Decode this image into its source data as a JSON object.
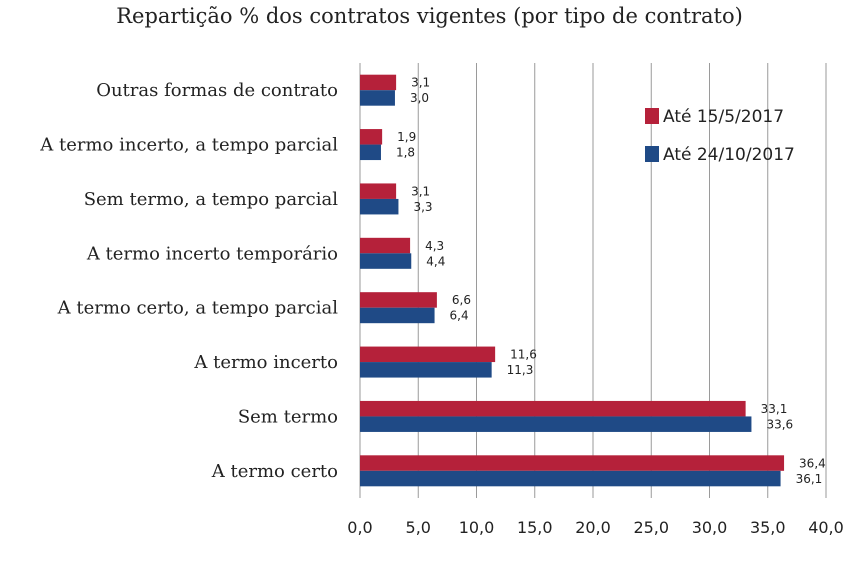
{
  "chart_data": {
    "type": "bar",
    "orientation": "horizontal",
    "title": "Repartição % dos contratos vigentes (por tipo de contrato)",
    "categories": [
      "Outras formas de contrato",
      "A termo incerto, a tempo parcial",
      "Sem termo, a tempo parcial",
      "A termo incerto temporário",
      "A termo certo, a tempo parcial",
      "A termo incerto",
      "Sem termo",
      "A termo certo"
    ],
    "series": [
      {
        "name": "Até 15/5/2017",
        "color": "#b5213a",
        "values": [
          3.1,
          1.9,
          3.1,
          4.3,
          6.6,
          11.6,
          33.1,
          36.4
        ],
        "labels": [
          "3,1",
          "1,9",
          "3,1",
          "4,3",
          "6,6",
          "11,6",
          "33,1",
          "36,4"
        ]
      },
      {
        "name": "Até 24/10/2017",
        "color": "#1f4a86",
        "values": [
          3.0,
          1.8,
          3.3,
          4.4,
          6.4,
          11.3,
          33.6,
          36.1
        ],
        "labels": [
          "3,0",
          "1,8",
          "3,3",
          "4,4",
          "6,4",
          "11,3",
          "33,6",
          "36,1"
        ]
      }
    ],
    "xlim": [
      0,
      40
    ],
    "xticks": [
      "0,0",
      "5,0",
      "10,0",
      "15,0",
      "20,0",
      "25,0",
      "30,0",
      "35,0",
      "40,0"
    ],
    "grid": true,
    "legend_position": "top-right"
  }
}
